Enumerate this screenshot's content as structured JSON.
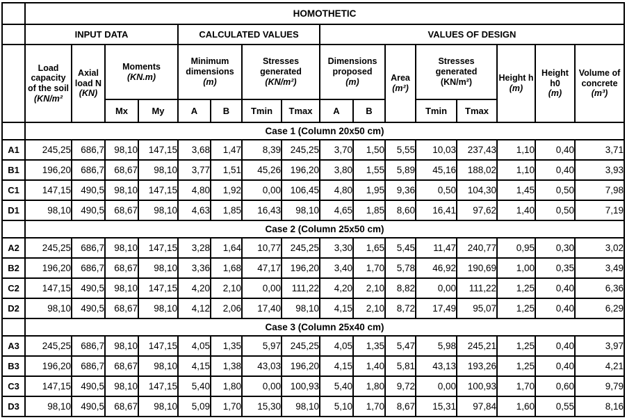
{
  "chart_data": {
    "type": "table",
    "title": "HOMOTHETIC",
    "groups": {
      "input": "INPUT DATA",
      "calculated": "CALCULATED VALUES",
      "design": "VALUES OF DESIGN"
    },
    "columns": {
      "load": {
        "name": "Load capacity of the soil",
        "unit": "(KN/m²"
      },
      "axial": {
        "name": "Axial load N",
        "unit": "(KN)"
      },
      "moments": {
        "name": "Moments",
        "unit": "(KN.m)",
        "sub": [
          "Mx",
          "My"
        ]
      },
      "min_dimensions": {
        "name": "Minimum dimensions",
        "unit": "(m)",
        "sub": [
          "A",
          "B"
        ]
      },
      "stresses_calculated": {
        "name": "Stresses generated",
        "unit": "(KN/m²)",
        "sub": [
          "Tmin",
          "Tmax"
        ]
      },
      "dimensions_proposed": {
        "name": "Dimensions proposed",
        "unit": "(m)",
        "sub": [
          "A",
          "B"
        ]
      },
      "area": {
        "name": "Area",
        "unit": "(m²)"
      },
      "stresses_design": {
        "name": "Stresses generated",
        "unit": "(KN/m²)",
        "sub": [
          "Tmin",
          "Tmax"
        ]
      },
      "height_h": {
        "name": "Height h",
        "unit": "(m)"
      },
      "height_h0": {
        "name": "Height h0",
        "unit": "(m)"
      },
      "volume": {
        "name": "Volume of concrete",
        "unit": "(m³)"
      }
    },
    "leaf_columns": [
      "Load capacity of the soil (KN/m²)",
      "Axial load N (KN)",
      "Mx",
      "My",
      "A min",
      "B min",
      "Tmin calculated",
      "Tmax calculated",
      "A proposed",
      "B proposed",
      "Area (m²)",
      "Tmin design",
      "Tmax design",
      "Height h (m)",
      "Height h0 (m)",
      "Volume of concrete (m³)"
    ],
    "cases": [
      {
        "banner": "Case 1 (Column 20x50 cm)",
        "rows": [
          {
            "label": "A1",
            "values": [
              "245,25",
              "686,7",
              "98,10",
              "147,15",
              "3,68",
              "1,47",
              "8,39",
              "245,25",
              "3,70",
              "1,50",
              "5,55",
              "10,03",
              "237,43",
              "1,10",
              "0,40",
              "3,71"
            ]
          },
          {
            "label": "B1",
            "values": [
              "196,20",
              "686,7",
              "68,67",
              "98,10",
              "3,77",
              "1,51",
              "45,26",
              "196,20",
              "3,80",
              "1,55",
              "5,89",
              "45,16",
              "188,02",
              "1,10",
              "0,40",
              "3,93"
            ]
          },
          {
            "label": "C1",
            "values": [
              "147,15",
              "490,5",
              "98,10",
              "147,15",
              "4,80",
              "1,92",
              "0,00",
              "106,45",
              "4,80",
              "1,95",
              "9,36",
              "0,50",
              "104,30",
              "1,45",
              "0,50",
              "7,98"
            ]
          },
          {
            "label": "D1",
            "values": [
              "98,10",
              "490,5",
              "68,67",
              "98,10",
              "4,63",
              "1,85",
              "16,43",
              "98,10",
              "4,65",
              "1,85",
              "8,60",
              "16,41",
              "97,62",
              "1,40",
              "0,50",
              "7,19"
            ]
          }
        ]
      },
      {
        "banner": "Case 2 (Column 25x50 cm)",
        "rows": [
          {
            "label": "A2",
            "values": [
              "245,25",
              "686,7",
              "98,10",
              "147,15",
              "3,28",
              "1,64",
              "10,77",
              "245,25",
              "3,30",
              "1,65",
              "5,45",
              "11,47",
              "240,77",
              "0,95",
              "0,30",
              "3,02"
            ]
          },
          {
            "label": "B2",
            "values": [
              "196,20",
              "686,7",
              "68,67",
              "98,10",
              "3,36",
              "1,68",
              "47,17",
              "196,20",
              "3,40",
              "1,70",
              "5,78",
              "46,92",
              "190,69",
              "1,00",
              "0,35",
              "3,49"
            ]
          },
          {
            "label": "C2",
            "values": [
              "147,15",
              "490,5",
              "98,10",
              "147,15",
              "4,20",
              "2,10",
              "0,00",
              "111,22",
              "4,20",
              "2,10",
              "8,82",
              "0,00",
              "111,22",
              "1,25",
              "0,40",
              "6,36"
            ]
          },
          {
            "label": "D2",
            "values": [
              "98,10",
              "490,5",
              "68,67",
              "98,10",
              "4,12",
              "2,06",
              "17,40",
              "98,10",
              "4,15",
              "2,10",
              "8,72",
              "17,49",
              "95,07",
              "1,25",
              "0,40",
              "6,29"
            ]
          }
        ]
      },
      {
        "banner": "Case 3 (Column 25x40 cm)",
        "rows": [
          {
            "label": "A3",
            "values": [
              "245,25",
              "686,7",
              "98,10",
              "147,15",
              "4,05",
              "1,35",
              "5,97",
              "245,25",
              "4,05",
              "1,35",
              "5,47",
              "5,98",
              "245,21",
              "1,25",
              "0,40",
              "3,97"
            ]
          },
          {
            "label": "B3",
            "values": [
              "196,20",
              "686,7",
              "68,67",
              "98,10",
              "4,15",
              "1,38",
              "43,03",
              "196,20",
              "4,15",
              "1,40",
              "5,81",
              "43,13",
              "193,26",
              "1,25",
              "0,40",
              "4,21"
            ]
          },
          {
            "label": "C3",
            "values": [
              "147,15",
              "490,5",
              "98,10",
              "147,15",
              "5,40",
              "1,80",
              "0,00",
              "100,93",
              "5,40",
              "1,80",
              "9,72",
              "0,00",
              "100,93",
              "1,70",
              "0,60",
              "9,79"
            ]
          },
          {
            "label": "D3",
            "values": [
              "98,10",
              "490,5",
              "68,67",
              "98,10",
              "5,09",
              "1,70",
              "15,30",
              "98,10",
              "5,10",
              "1,70",
              "8,67",
              "15,31",
              "97,84",
              "1,60",
              "0,55",
              "8,16"
            ]
          }
        ]
      }
    ]
  }
}
